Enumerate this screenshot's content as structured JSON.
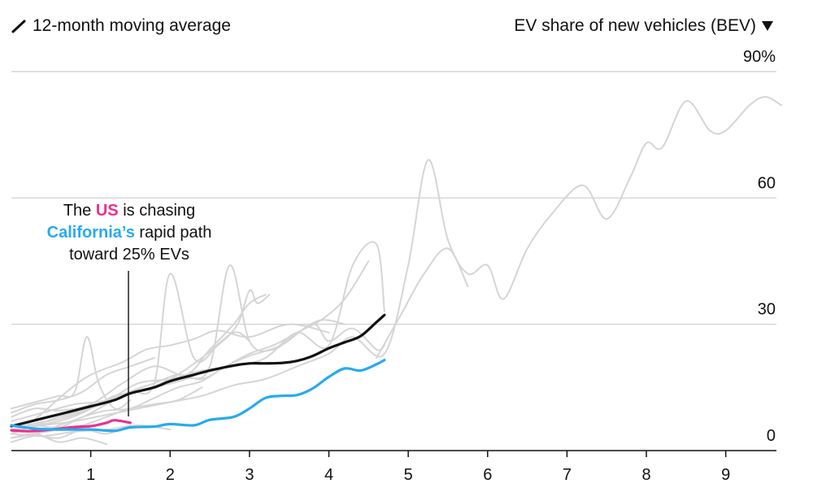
{
  "header": {
    "legend_label": "12-month moving average",
    "legend_icon": "diagonal-line-icon",
    "metric_label": "EV share of new vehicles (BEV)",
    "metric_dropdown_icon": "triangle-down-icon"
  },
  "annotation": {
    "line1_pre": "The",
    "line1_us": "US",
    "line1_post": "is chasing",
    "line2_ca": "California’s",
    "line2_post": "rapid path",
    "line3": "toward 25% EVs"
  },
  "colors": {
    "us": "#ec2f8d",
    "california": "#28aaee",
    "average": "#111111",
    "others": "#d5d5d5",
    "grid": "#cccccc"
  },
  "chart_data": {
    "type": "line",
    "xlabel": "",
    "ylabel": "",
    "xlim": [
      0,
      9.7
    ],
    "ylim": [
      0,
      90
    ],
    "x_ticks": [
      "1",
      "2",
      "3",
      "4",
      "5",
      "6",
      "7",
      "8",
      "9"
    ],
    "x_tick_values": [
      1,
      2,
      3,
      4,
      5,
      6,
      7,
      8,
      9
    ],
    "y_ticks": [
      "0",
      "30",
      "60",
      "90%"
    ],
    "y_tick_values": [
      0,
      30,
      60,
      90
    ],
    "grid": "horizontal",
    "series": [
      {
        "name": "US",
        "role": "highlight",
        "color": "#ec2f8d",
        "x": [
          0,
          0.2,
          0.4,
          0.6,
          0.8,
          1.0,
          1.2,
          1.3,
          1.5
        ],
        "y": [
          4.8,
          4.6,
          4.8,
          5.2,
          5.6,
          5.8,
          6.6,
          7.2,
          6.6
        ]
      },
      {
        "name": "California",
        "role": "highlight",
        "color": "#28aaee",
        "x": [
          0,
          0.3,
          0.6,
          1.0,
          1.3,
          1.5,
          1.8,
          2.0,
          2.3,
          2.5,
          2.8,
          3.0,
          3.2,
          3.4,
          3.6,
          3.8,
          4.0,
          4.2,
          4.4,
          4.6,
          4.7
        ],
        "y": [
          6.0,
          5.2,
          5.0,
          5.0,
          4.7,
          5.5,
          5.7,
          6.3,
          6.0,
          7.3,
          8.0,
          10.0,
          12.5,
          13.0,
          13.2,
          14.8,
          17.5,
          19.5,
          19.0,
          20.5,
          21.5
        ]
      },
      {
        "name": "Average",
        "role": "average",
        "color": "#111111",
        "x": [
          0,
          0.3,
          0.6,
          1.0,
          1.3,
          1.5,
          1.8,
          2.0,
          2.3,
          2.5,
          2.8,
          3.0,
          3.2,
          3.4,
          3.6,
          3.8,
          4.0,
          4.2,
          4.4,
          4.6,
          4.7
        ],
        "y": [
          5.8,
          7.2,
          8.6,
          10.5,
          12.0,
          13.6,
          15.0,
          16.5,
          18.0,
          19.0,
          20.2,
          20.7,
          20.7,
          20.8,
          21.3,
          22.5,
          24.3,
          25.7,
          27.2,
          30.5,
          32.2
        ]
      },
      {
        "name": "",
        "role": "other",
        "x": [
          0,
          0.4,
          0.8,
          1.2,
          1.6,
          2.0,
          2.4,
          2.8,
          3.2,
          3.6,
          4.0,
          4.3,
          4.7,
          5.0,
          5.25,
          5.5,
          5.75,
          6.0,
          6.2,
          6.5,
          6.8,
          7.2,
          7.5,
          7.8,
          8.0,
          8.2,
          8.5,
          8.8,
          9.0,
          9.3,
          9.5,
          9.7
        ],
        "y": [
          5.0,
          6.0,
          7.0,
          8.5,
          10.0,
          11.5,
          13.0,
          15.5,
          17.0,
          20.0,
          23.0,
          27.0,
          23.0,
          44.0,
          69.0,
          50.0,
          42.0,
          44.0,
          36.0,
          48.0,
          56.0,
          63.0,
          55.0,
          65.0,
          73.0,
          72.0,
          83.0,
          76.0,
          76.0,
          82.0,
          84.0,
          82.0
        ]
      },
      {
        "name": "",
        "role": "other",
        "x": [
          4.6,
          4.9,
          5.2,
          5.5,
          5.75
        ],
        "y": [
          22.0,
          32.0,
          42.0,
          48.0,
          39.0
        ]
      },
      {
        "name": "",
        "role": "other",
        "x": [
          0,
          0.4,
          0.8,
          1.2,
          1.6,
          2.0,
          2.4,
          2.8,
          3.2,
          3.6,
          4.0,
          4.3,
          4.6,
          4.7
        ],
        "y": [
          7.0,
          9.0,
          11.0,
          12.0,
          16.0,
          17.0,
          19.0,
          20.0,
          22.0,
          28.0,
          25.0,
          44.0,
          49.0,
          33.0
        ]
      },
      {
        "name": "",
        "role": "other",
        "x": [
          0,
          0.3,
          0.6,
          1.0,
          1.4,
          1.8,
          2.2,
          2.5,
          2.75,
          3.0,
          3.3,
          3.6,
          3.9,
          4.2,
          4.5
        ],
        "y": [
          4.0,
          6.0,
          8.0,
          10.0,
          13.0,
          15.0,
          17.0,
          20.0,
          44.0,
          26.0,
          24.0,
          28.0,
          31.0,
          36.0,
          45.0
        ]
      },
      {
        "name": "",
        "role": "other",
        "x": [
          0,
          0.3,
          0.6,
          0.9,
          1.2,
          1.5,
          1.8,
          2.0,
          2.3,
          2.6,
          2.85,
          3.0,
          3.1,
          3.25
        ],
        "y": [
          5.0,
          6.0,
          7.0,
          9.0,
          12.0,
          14.0,
          16.0,
          42.0,
          22.0,
          25.0,
          30.0,
          38.0,
          35.0,
          37.0
        ]
      },
      {
        "name": "",
        "role": "other",
        "x": [
          0,
          0.3,
          0.6,
          1.0,
          1.4,
          1.8,
          2.2,
          2.5,
          2.8,
          3.0,
          3.2
        ],
        "y": [
          8.0,
          10.0,
          9.5,
          11.0,
          16.0,
          20.0,
          18.0,
          24.0,
          30.0,
          35.0,
          37.0
        ]
      },
      {
        "name": "",
        "role": "other",
        "x": [
          0,
          0.3,
          0.6,
          1.0,
          1.3,
          1.6,
          2.0,
          2.4,
          2.8,
          3.0
        ],
        "y": [
          5.0,
          6.5,
          7.5,
          10.0,
          13.0,
          14.0,
          17.0,
          22.0,
          28.0,
          26.0
        ]
      },
      {
        "name": "",
        "role": "other",
        "x": [
          0,
          0.3,
          0.6,
          0.9,
          1.2,
          1.5,
          1.8,
          2.1,
          2.4,
          2.7,
          3.0,
          3.4,
          3.8,
          4.0,
          4.3,
          4.6,
          4.7
        ],
        "y": [
          6.0,
          6.0,
          5.5,
          8.0,
          9.5,
          10.0,
          12.5,
          15.0,
          16.5,
          20.0,
          22.5,
          25.0,
          30.0,
          26.0,
          29.0,
          24.0,
          25.0
        ]
      },
      {
        "name": "",
        "role": "other",
        "x": [
          0,
          0.3,
          0.7,
          1.0,
          1.4,
          1.7,
          2.0,
          2.3,
          2.6,
          3.0,
          3.5,
          4.0
        ],
        "y": [
          4.0,
          7.5,
          14.0,
          18.0,
          21.0,
          24.0,
          25.0,
          26.5,
          28.5,
          27.0,
          30.0,
          28.0
        ]
      },
      {
        "name": "",
        "role": "other",
        "x": [
          0,
          0.2,
          0.4,
          0.6,
          0.8,
          0.95,
          1.1,
          1.3,
          1.5
        ],
        "y": [
          10.0,
          11.0,
          12.0,
          13.0,
          14.0,
          27.0,
          16.0,
          10.0,
          12.0
        ]
      },
      {
        "name": "",
        "role": "other",
        "x": [
          0,
          0.3,
          0.6,
          0.9,
          1.2,
          1.5,
          1.8,
          2.1,
          2.4
        ],
        "y": [
          3.0,
          4.0,
          5.0,
          6.0,
          8.0,
          10.0,
          11.0,
          12.0,
          15.0
        ]
      },
      {
        "name": "",
        "role": "other",
        "x": [
          0,
          0.3,
          0.6,
          0.9,
          1.2,
          1.5,
          1.8
        ],
        "y": [
          9.0,
          11.0,
          12.0,
          14.0,
          18.0,
          20.0,
          22.0
        ]
      },
      {
        "name": "",
        "role": "other",
        "x": [
          0,
          0.3,
          0.6,
          0.9,
          1.2,
          1.5,
          1.8,
          2.1,
          2.4,
          2.7,
          3.0,
          3.3,
          3.6,
          3.9,
          4.2
        ],
        "y": [
          3.0,
          4.0,
          6.0,
          8.0,
          11.0,
          14.0,
          16.0,
          18.0,
          17.0,
          20.0,
          23.0,
          25.0,
          28.0,
          31.0,
          30.0
        ]
      },
      {
        "name": "",
        "role": "other",
        "x": [
          0,
          0.3,
          0.6,
          0.9,
          1.2,
          1.5
        ],
        "y": [
          2.0,
          3.5,
          3.0,
          5.0,
          4.0,
          6.0
        ]
      },
      {
        "name": "",
        "role": "other",
        "x": [
          0,
          0.3,
          0.6,
          0.9,
          1.2
        ],
        "y": [
          3.0,
          4.0,
          2.0,
          3.0,
          1.5
        ]
      },
      {
        "name": "",
        "role": "other",
        "x": [
          0,
          0.4,
          0.8,
          1.2,
          1.6,
          2.0
        ],
        "y": [
          4.0,
          3.5,
          4.5,
          5.0,
          6.0,
          5.0
        ]
      }
    ]
  }
}
